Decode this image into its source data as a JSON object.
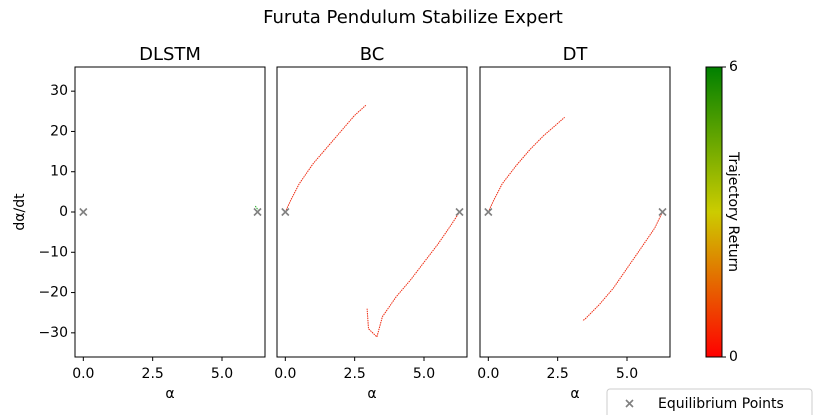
{
  "title": "Furuta Pendulum Stabilize Expert",
  "equilibrium": {
    "name": "Equilibrium Points",
    "color": "#808080",
    "x": [
      0,
      6.28
    ],
    "y": [
      0,
      0
    ]
  },
  "colorbar": {
    "label": "Trajectory Return",
    "lim": [
      0,
      6
    ],
    "ticks": [
      0,
      6
    ],
    "colors": [
      "#ff0000",
      "#cccc00",
      "#008000"
    ]
  },
  "chart_data": [
    {
      "type": "line",
      "title": "DLSTM",
      "xlabel": "α",
      "ylabel": "dα/dt",
      "xlim": [
        -0.3,
        6.55
      ],
      "ylim": [
        -36,
        36
      ],
      "xticks": [
        {
          "value": 0,
          "label": "0.0"
        },
        {
          "value": 2.5,
          "label": "2.5"
        },
        {
          "value": 5,
          "label": "5.0"
        }
      ],
      "yticks": [
        {
          "value": -30,
          "label": "−30"
        },
        {
          "value": -20,
          "label": "−20"
        },
        {
          "value": -10,
          "label": "−10"
        },
        0,
        10,
        20,
        30
      ],
      "series": [
        {
          "color": "#22aa22",
          "x": [
            6.2,
            6.25,
            6.3
          ],
          "y": [
            1.5,
            1,
            0.5
          ]
        }
      ]
    },
    {
      "type": "line",
      "title": "BC",
      "xlabel": "α",
      "xlim": [
        -0.3,
        6.55
      ],
      "ylim": [
        -36,
        36
      ],
      "xticks": [
        {
          "value": 0,
          "label": "0.0"
        },
        {
          "value": 2.5,
          "label": "2.5"
        },
        {
          "value": 5,
          "label": "5.0"
        }
      ],
      "series": [
        {
          "color": "#ee2a10",
          "x": [
            0,
            0.2,
            0.5,
            1,
            1.5,
            2,
            2.5,
            2.9
          ],
          "y": [
            0,
            3,
            7,
            12,
            16,
            20,
            24,
            26.5
          ]
        },
        {
          "color": "#ee2a10",
          "x": [
            6.28,
            6,
            5.5,
            5,
            4.5,
            4,
            3.5,
            3.3,
            3.0,
            2.95
          ],
          "y": [
            0,
            -3,
            -8,
            -12.5,
            -17,
            -21,
            -26,
            -31,
            -29,
            -24
          ]
        }
      ]
    },
    {
      "type": "line",
      "title": "DT",
      "xlabel": "α",
      "xlim": [
        -0.3,
        6.55
      ],
      "ylim": [
        -36,
        36
      ],
      "xticks": [
        {
          "value": 0,
          "label": "0.0"
        },
        {
          "value": 2.5,
          "label": "2.5"
        },
        {
          "value": 5,
          "label": "5.0"
        }
      ],
      "series": [
        {
          "color": "#ee2a10",
          "x": [
            0,
            0.2,
            0.5,
            1,
            1.5,
            2,
            2.5,
            2.75
          ],
          "y": [
            0,
            3,
            7,
            11.5,
            15.5,
            19,
            22,
            23.5
          ]
        },
        {
          "color": "#ee2a10",
          "x": [
            6.28,
            6,
            5.5,
            5,
            4.5,
            4,
            3.5,
            3.4
          ],
          "y": [
            0,
            -4,
            -9,
            -14,
            -19,
            -23,
            -26.5,
            -27
          ]
        }
      ]
    }
  ]
}
